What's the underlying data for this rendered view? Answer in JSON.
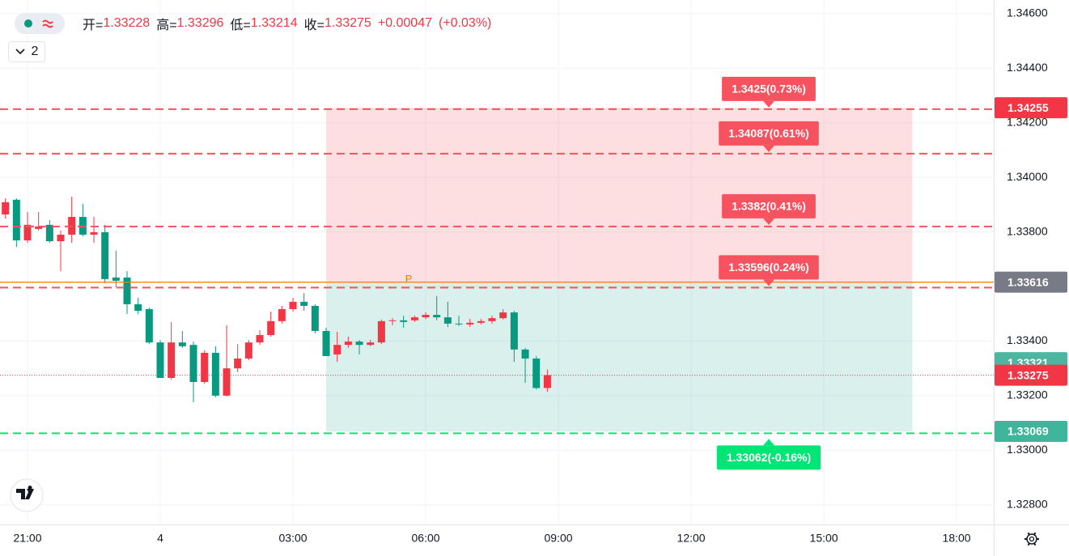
{
  "chart_data": {
    "type": "candlestick",
    "ohlc_labels": [
      "开=",
      "高=",
      "低=",
      "收="
    ],
    "change": "+0.00047",
    "change_pct": "(+0.03%)",
    "collapse_label": "2",
    "x": [
      20.5,
      20.75,
      21,
      21.25,
      21.5,
      21.75,
      22,
      22.25,
      22.5,
      22.75,
      23,
      23.25,
      23.5,
      23.75,
      24,
      24.25,
      24.5,
      24.75,
      25,
      25.25,
      25.5,
      25.75,
      26,
      26.25,
      26.5,
      26.75,
      27,
      27.25,
      27.5,
      27.75,
      28,
      28.25,
      28.5,
      28.75,
      29,
      29.25,
      29.5,
      29.75,
      30,
      30.25,
      30.5,
      30.75,
      31,
      31.25,
      31.5,
      31.75,
      32,
      32.25,
      32.5,
      32.75
    ],
    "open": [
      1.33864,
      1.33918,
      1.33769,
      1.33811,
      1.33826,
      1.33766,
      1.3379,
      1.33855,
      1.3379,
      1.33799,
      1.33633,
      1.33633,
      1.33535,
      1.33517,
      1.33395,
      1.33265,
      1.33395,
      1.33386,
      1.3325,
      1.33357,
      1.332,
      1.333,
      1.33336,
      1.33395,
      1.33422,
      1.33473,
      1.33517,
      1.33544,
      1.33529,
      1.33437,
      1.33351,
      1.33386,
      1.33398,
      1.33386,
      1.33395,
      1.33473,
      1.33476,
      1.33476,
      1.33487,
      1.33496,
      1.33487,
      1.33464,
      1.33461,
      1.33467,
      1.33473,
      1.33484,
      1.33505,
      1.33369,
      1.33336,
      1.33228
    ],
    "high": [
      1.33923,
      1.33923,
      1.33873,
      1.33873,
      1.33843,
      1.33805,
      1.33929,
      1.33903,
      1.33855,
      1.33826,
      1.33731,
      1.33656,
      1.33559,
      1.33523,
      1.33404,
      1.3347,
      1.33437,
      1.33398,
      1.33366,
      1.33381,
      1.33458,
      1.33389,
      1.33404,
      1.3344,
      1.33508,
      1.33529,
      1.33559,
      1.33576,
      1.33535,
      1.33449,
      1.33434,
      1.33416,
      1.33404,
      1.33404,
      1.33479,
      1.33484,
      1.33493,
      1.33493,
      1.33505,
      1.33565,
      1.33544,
      1.33493,
      1.33481,
      1.33481,
      1.33493,
      1.33517,
      1.33511,
      1.33375,
      1.33345,
      1.33296
    ],
    "low": [
      1.33849,
      1.33745,
      1.3376,
      1.33805,
      1.3376,
      1.33656,
      1.3376,
      1.33784,
      1.3376,
      1.33612,
      1.33597,
      1.33499,
      1.33499,
      1.33389,
      1.33265,
      1.33259,
      1.33375,
      1.33176,
      1.33244,
      1.33194,
      1.33197,
      1.33286,
      1.3333,
      1.33386,
      1.33416,
      1.33464,
      1.33508,
      1.33511,
      1.33428,
      1.33345,
      1.33324,
      1.33375,
      1.33351,
      1.33381,
      1.33389,
      1.33458,
      1.33449,
      1.3347,
      1.33481,
      1.33476,
      1.33452,
      1.33455,
      1.33452,
      1.33461,
      1.33464,
      1.33479,
      1.33324,
      1.33247,
      1.33223,
      1.33214
    ],
    "close": [
      1.33909,
      1.33769,
      1.33826,
      1.3382,
      1.33766,
      1.3379,
      1.33855,
      1.3379,
      1.33799,
      1.33627,
      1.33621,
      1.33535,
      1.33511,
      1.33395,
      1.33265,
      1.33395,
      1.33381,
      1.3325,
      1.33357,
      1.332,
      1.333,
      1.33336,
      1.33395,
      1.33422,
      1.33473,
      1.33517,
      1.33544,
      1.33529,
      1.33437,
      1.33345,
      1.33386,
      1.33398,
      1.33386,
      1.33395,
      1.33473,
      1.33476,
      1.3347,
      1.33487,
      1.33496,
      1.33487,
      1.33464,
      1.33461,
      1.33467,
      1.33473,
      1.33484,
      1.33505,
      1.33369,
      1.33336,
      1.33228,
      1.33275
    ],
    "up_color": "#f23645",
    "down_color": "#089981",
    "xlim": [
      20.378,
      42.84
    ],
    "ylim": [
      1.32728,
      1.3465
    ],
    "xticks": [
      {
        "value": 21,
        "label": "21:00"
      },
      {
        "value": 24,
        "label": "4"
      },
      {
        "value": 27,
        "label": "03:00"
      },
      {
        "value": 30,
        "label": "06:00"
      },
      {
        "value": 33,
        "label": "09:00"
      },
      {
        "value": 36,
        "label": "12:00"
      },
      {
        "value": 39,
        "label": "15:00"
      },
      {
        "value": 42,
        "label": "18:00"
      }
    ],
    "yticks": [
      {
        "value": 1.346,
        "label": "1.34600"
      },
      {
        "value": 1.344,
        "label": "1.34400"
      },
      {
        "value": 1.342,
        "label": "1.34200"
      },
      {
        "value": 1.34,
        "label": "1.34000"
      },
      {
        "value": 1.338,
        "label": "1.33800"
      },
      {
        "value": 1.336,
        "label": "1.33600"
      },
      {
        "value": 1.334,
        "label": "1.33400"
      },
      {
        "value": 1.332,
        "label": "1.33200"
      },
      {
        "value": 1.33,
        "label": "1.33000"
      },
      {
        "value": 1.328,
        "label": "1.32800"
      }
    ],
    "grid": true,
    "position": {
      "x": [
        27.75,
        41
      ],
      "target": 1.34255,
      "entry": 1.33616,
      "stop": 1.33069,
      "entry_label": "P",
      "entry_color": "#f57c00",
      "profit_color": "#f23645",
      "loss_color": "#089981"
    },
    "levels": [
      {
        "value": 1.3425,
        "label": "1.3425(0.73%)",
        "color": "#f7525f"
      },
      {
        "value": 1.34087,
        "label": "1.34087(0.61%)",
        "color": "#f7525f"
      },
      {
        "value": 1.3382,
        "label": "1.3382(0.41%)",
        "color": "#f7525f"
      },
      {
        "value": 1.33596,
        "label": "1.33596(0.24%)",
        "color": "#f7525f"
      },
      {
        "value": 1.33062,
        "label": "1.33062(-0.16%)",
        "color": "#00e676"
      }
    ],
    "price_labels": [
      {
        "value": 1.34255,
        "color": "#f23645"
      },
      {
        "value": 1.33616,
        "color": "#787b86"
      },
      {
        "value": 1.33321,
        "color": "#4db6a0"
      },
      {
        "value": 1.33069,
        "color": "#3fb59c"
      }
    ]
  }
}
